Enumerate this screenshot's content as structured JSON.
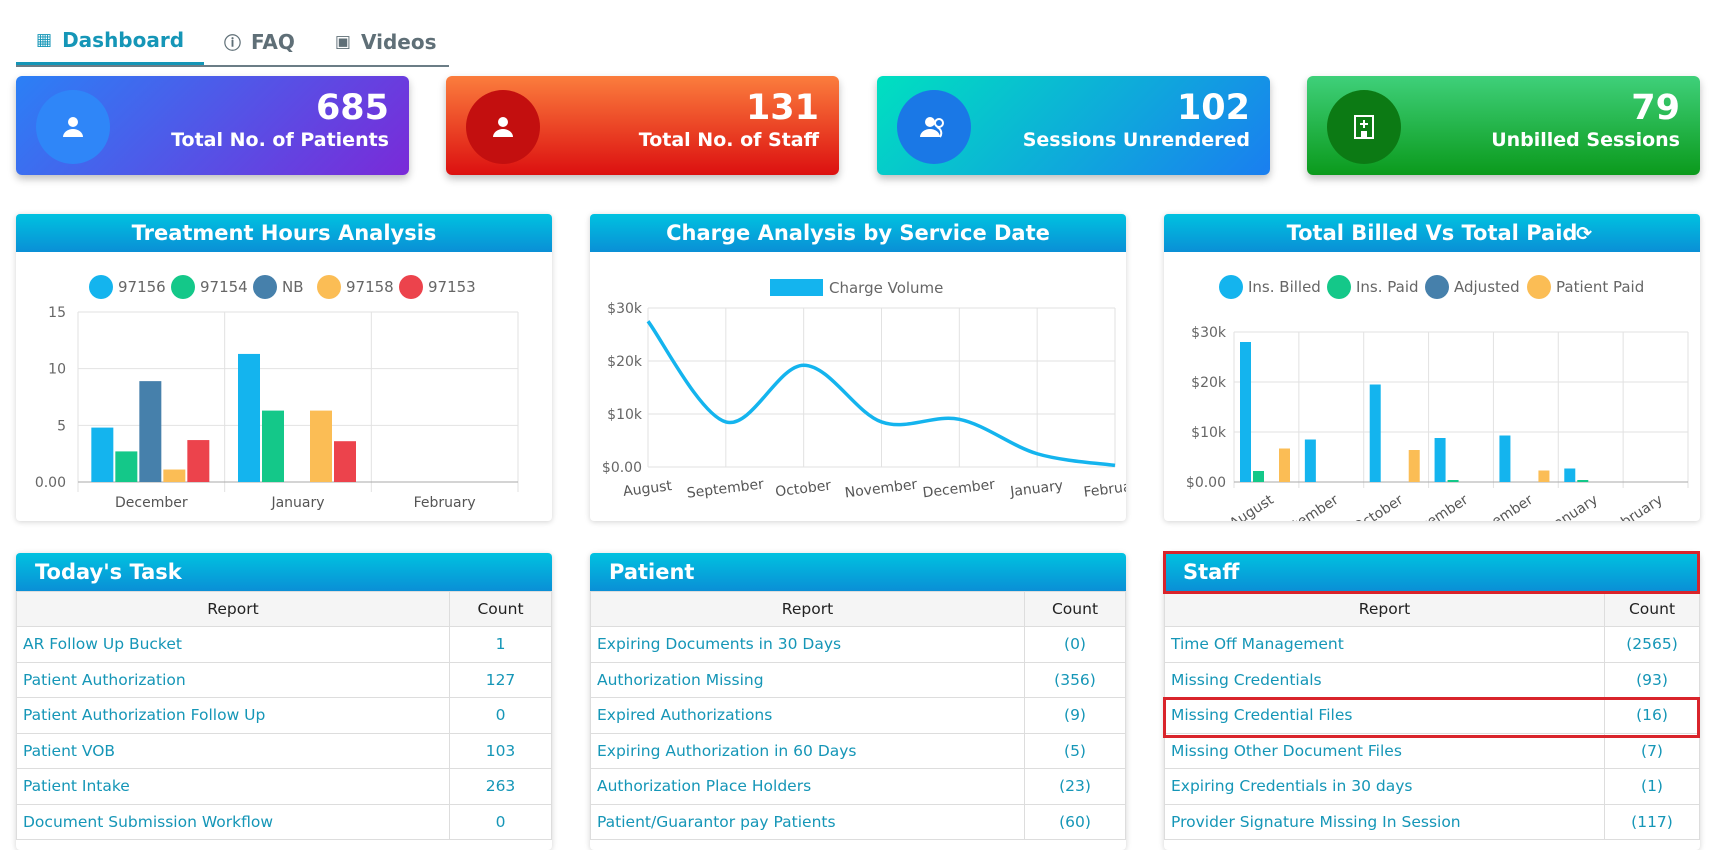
{
  "tabs": [
    {
      "label": "Dashboard",
      "icon": "dashboard-icon"
    },
    {
      "label": "FAQ",
      "icon": "question-circle-icon"
    },
    {
      "label": "Videos",
      "icon": "video-icon"
    }
  ],
  "cards": [
    {
      "value": "685",
      "label": "Total No. of Patients",
      "icon": "user-icon"
    },
    {
      "value": "131",
      "label": "Total No. of Staff",
      "icon": "user-icon"
    },
    {
      "value": "102",
      "label": "Sessions Unrendered",
      "icon": "users-icon"
    },
    {
      "value": "79",
      "label": "Unbilled Sessions",
      "icon": "hospital-icon"
    }
  ],
  "colors": {
    "accent": "#1596b7",
    "97156": "#14b4ee",
    "97154": "#14c889",
    "NB": "#4680ab",
    "97158": "#fbbd55",
    "97153": "#ec434c",
    "highlight": "#d9242b"
  },
  "chart_data": [
    {
      "type": "bar",
      "title": "Treatment Hours Analysis",
      "categories": [
        "December",
        "January",
        "February"
      ],
      "series": [
        {
          "name": "97156",
          "values": [
            4.8,
            11.3,
            0
          ]
        },
        {
          "name": "97154",
          "values": [
            2.7,
            6.3,
            0
          ]
        },
        {
          "name": "NB",
          "values": [
            8.9,
            0,
            0
          ]
        },
        {
          "name": "97158",
          "values": [
            1.1,
            6.3,
            0
          ]
        },
        {
          "name": "97153",
          "values": [
            3.7,
            3.6,
            0
          ]
        }
      ],
      "yticks": [
        "0.00",
        "5",
        "10",
        "15"
      ],
      "ylim": [
        0,
        15
      ],
      "legend": "top",
      "grid": true
    },
    {
      "type": "line",
      "title": "Charge Analysis by Service Date",
      "categories": [
        "August",
        "September",
        "October",
        "November",
        "December",
        "January",
        "February"
      ],
      "series": [
        {
          "name": "Charge Volume",
          "values": [
            27500,
            8500,
            19200,
            8500,
            9000,
            2500,
            300
          ]
        }
      ],
      "yticks": [
        "$0.00",
        "$10k",
        "$20k",
        "$30k"
      ],
      "ylim": [
        0,
        30000
      ],
      "legend": "top",
      "grid": true
    },
    {
      "type": "bar",
      "title": "Total Billed Vs Total Paid",
      "categories": [
        "August",
        "September",
        "October",
        "November",
        "December",
        "January",
        "February"
      ],
      "series": [
        {
          "name": "Ins. Billed",
          "values": [
            28000,
            8500,
            19500,
            8800,
            9300,
            2700,
            0
          ]
        },
        {
          "name": "Ins. Paid",
          "values": [
            2200,
            0,
            0,
            400,
            0,
            400,
            0
          ]
        },
        {
          "name": "Adjusted",
          "values": [
            0,
            0,
            0,
            0,
            0,
            0,
            0
          ]
        },
        {
          "name": "Patient Paid",
          "values": [
            6700,
            0,
            6400,
            0,
            2300,
            0,
            0
          ]
        }
      ],
      "yticks": [
        "$0.00",
        "$10k",
        "$20k",
        "$30k"
      ],
      "ylim": [
        0,
        30000
      ],
      "legend": "top",
      "grid": true
    }
  ],
  "tables": {
    "task": {
      "title": "Today's Task",
      "headers": [
        "Report",
        "Count"
      ],
      "rows": [
        [
          "AR Follow Up Bucket",
          "1"
        ],
        [
          "Patient Authorization",
          "127"
        ],
        [
          "Patient Authorization Follow Up",
          "0"
        ],
        [
          "Patient VOB",
          "103"
        ],
        [
          "Patient Intake",
          "263"
        ],
        [
          "Document Submission Workflow",
          "0"
        ]
      ]
    },
    "patient": {
      "title": "Patient",
      "headers": [
        "Report",
        "Count"
      ],
      "rows": [
        [
          "Expiring Documents in 30 Days",
          "(0)"
        ],
        [
          "Authorization Missing",
          "(356)"
        ],
        [
          "Expired Authorizations",
          "(9)"
        ],
        [
          "Expiring Authorization in 60 Days",
          "(5)"
        ],
        [
          "Authorization Place Holders",
          "(23)"
        ],
        [
          "Patient/Guarantor pay Patients",
          "(60)"
        ]
      ]
    },
    "staff": {
      "title": "Staff",
      "headers": [
        "Report",
        "Count"
      ],
      "rows": [
        [
          "Time Off Management",
          "(2565)"
        ],
        [
          "Missing Credentials",
          "(93)"
        ],
        [
          "Missing Credential Files",
          "(16)"
        ],
        [
          "Missing Other Document Files",
          "(7)"
        ],
        [
          "Expiring Credentials in 30 days",
          "(1)"
        ],
        [
          "Provider Signature Missing In Session",
          "(117)"
        ]
      ]
    }
  }
}
